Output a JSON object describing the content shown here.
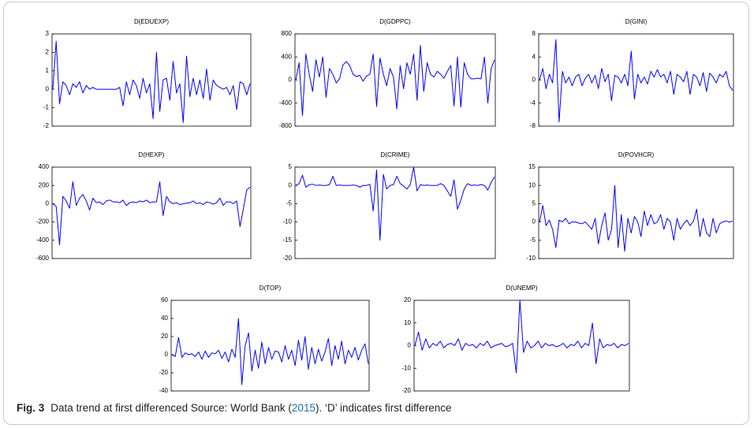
{
  "chart_data": [
    {
      "type": "line",
      "title": "D(EDUEXP)",
      "color": "#0000ff",
      "ylim": [
        -2,
        3
      ],
      "yticks": [
        -2,
        -1,
        0,
        1,
        2,
        3
      ],
      "values": [
        0,
        2.6,
        -0.8,
        0.4,
        0.2,
        -0.3,
        0.3,
        0.1,
        0.4,
        -0.2,
        0.2,
        0,
        0.1,
        0,
        0,
        0,
        0,
        0,
        0,
        0,
        0.1,
        -0.9,
        0.4,
        -0.3,
        0.5,
        0.2,
        -0.5,
        0.6,
        -0.2,
        0.3,
        -1.6,
        2,
        -1.2,
        0.5,
        0.6,
        -0.6,
        1.5,
        -0.2,
        0.3,
        -1.8,
        1.8,
        -0.4,
        0.6,
        -0.3,
        0.5,
        -0.5,
        1.1,
        -0.6,
        0.5,
        0.2,
        0.1,
        0,
        0.1,
        -0.3,
        0.2,
        -1.1,
        0.4,
        0.3,
        -0.3,
        0.3
      ]
    },
    {
      "type": "line",
      "title": "D(GDPPC)",
      "color": "#0000ff",
      "ylim": [
        -800,
        800
      ],
      "yticks": [
        -800,
        -400,
        0,
        400,
        800
      ],
      "values": [
        0,
        300,
        -620,
        450,
        100,
        -200,
        350,
        50,
        400,
        -300,
        200,
        100,
        -50,
        20,
        260,
        320,
        250,
        100,
        60,
        80,
        -20,
        70,
        100,
        450,
        -460,
        380,
        100,
        -100,
        200,
        50,
        -500,
        250,
        -150,
        300,
        100,
        450,
        -350,
        600,
        -200,
        300,
        100,
        50,
        150,
        100,
        30,
        150,
        250,
        -450,
        400,
        -470,
        300,
        100,
        20,
        20,
        30,
        20,
        400,
        -400,
        200,
        350
      ]
    },
    {
      "type": "line",
      "title": "D(GINI)",
      "color": "#0000ff",
      "ylim": [
        -8,
        8
      ],
      "yticks": [
        -8,
        -4,
        0,
        4,
        8
      ],
      "values": [
        0,
        2,
        -1.5,
        1,
        -0.5,
        7,
        -7.3,
        1.5,
        -0.5,
        0.5,
        -1,
        0.5,
        1,
        -1,
        0.3,
        1,
        -0.5,
        0.8,
        -1.5,
        2,
        -0.3,
        1,
        -3.6,
        0.8,
        0.5,
        -0.5,
        1,
        -1,
        5,
        -3.3,
        1,
        -0.5,
        0.5,
        -0.7,
        1.5,
        0.5,
        1.8,
        0.5,
        1,
        -0.5,
        1.5,
        -2.5,
        1,
        0.5,
        -0.3,
        1.5,
        -2.5,
        1,
        0.5,
        -1,
        1.3,
        -2,
        1.2,
        0.5,
        -0.5,
        1,
        0.5,
        1.5,
        -1,
        -1.8
      ]
    },
    {
      "type": "line",
      "title": "D(HEXP)",
      "color": "#0000ff",
      "ylim": [
        -600,
        400
      ],
      "yticks": [
        -600,
        -400,
        -200,
        0,
        200,
        400
      ],
      "values": [
        0,
        -30,
        -450,
        80,
        30,
        -50,
        240,
        -20,
        60,
        100,
        30,
        -70,
        60,
        10,
        20,
        -10,
        30,
        40,
        20,
        20,
        10,
        40,
        -20,
        10,
        20,
        10,
        30,
        20,
        40,
        10,
        20,
        20,
        240,
        -130,
        80,
        20,
        0,
        10,
        -10,
        0,
        5,
        10,
        30,
        0,
        10,
        -10,
        20,
        10,
        -5,
        10,
        60,
        -20,
        20,
        20,
        0,
        30,
        -250,
        -60,
        150,
        180
      ]
    },
    {
      "type": "line",
      "title": "D(CRIME)",
      "color": "#0000ff",
      "ylim": [
        -20,
        5
      ],
      "yticks": [
        -20,
        -15,
        -10,
        -5,
        0,
        5
      ],
      "values": [
        0,
        0.5,
        2.8,
        -0.5,
        0.2,
        0.3,
        0,
        0.1,
        0,
        0,
        0.2,
        2.5,
        0,
        0.1,
        0,
        0,
        0,
        0.1,
        0,
        -0.5,
        0,
        0,
        0.3,
        -7,
        4.2,
        -15,
        3,
        -1,
        0,
        0.2,
        2.5,
        0.5,
        -0.2,
        -1,
        0.2,
        5,
        -1.5,
        0.2,
        0,
        0.1,
        0,
        0,
        0,
        0.5,
        0,
        -1.5,
        -3,
        1.5,
        -6.5,
        -4,
        -1,
        0.5,
        0,
        0.1,
        0,
        0.2,
        0,
        -1.3,
        0.8,
        2.3
      ]
    },
    {
      "type": "line",
      "title": "D(POVHCR)",
      "color": "#0000ff",
      "ylim": [
        -10,
        15
      ],
      "yticks": [
        -10,
        -5,
        0,
        5,
        10,
        15
      ],
      "values": [
        0,
        4.5,
        -1,
        0.5,
        -2,
        -7,
        0.5,
        0,
        1,
        -0.5,
        0,
        0,
        -0.3,
        -0.5,
        0,
        -1,
        -2,
        1,
        -6,
        -1,
        2.5,
        -5,
        -2,
        10,
        -7,
        2,
        -8,
        1,
        -3,
        1.5,
        0,
        -4,
        3,
        -1,
        2,
        -0.5,
        0,
        2,
        -2,
        1,
        0,
        -5,
        1,
        -2,
        -0.5,
        0.5,
        -1,
        0.2,
        3.5,
        -4,
        1,
        -3,
        -4,
        1,
        -3,
        -0.5,
        0,
        0.3,
        0,
        0.2
      ]
    },
    {
      "type": "line",
      "title": "D(TOP)",
      "color": "#0000ff",
      "ylim": [
        -40,
        60
      ],
      "yticks": [
        -40,
        -20,
        0,
        20,
        40,
        60
      ],
      "values": [
        0,
        -2,
        19,
        -3,
        2,
        0,
        1,
        -2,
        3,
        -5,
        4,
        -3,
        2,
        1,
        5,
        -4,
        3,
        -8,
        6,
        -3,
        40,
        -33,
        10,
        24,
        -18,
        5,
        -15,
        14,
        -10,
        8,
        -5,
        4,
        3,
        -8,
        10,
        -5,
        5,
        -12,
        16,
        -6,
        20,
        -16,
        8,
        -10,
        6,
        -7,
        3,
        18,
        -12,
        10,
        -5,
        15,
        -10,
        5,
        -3,
        8,
        -6,
        5,
        12,
        -10
      ]
    },
    {
      "type": "line",
      "title": "D(UNEMP)",
      "color": "#0000ff",
      "ylim": [
        -20,
        20
      ],
      "yticks": [
        -20,
        -10,
        0,
        10,
        20
      ],
      "values": [
        0,
        6,
        -2,
        3,
        -1,
        1,
        0,
        2,
        -1,
        0.5,
        1,
        0,
        3,
        -2,
        1,
        0,
        0.5,
        -1,
        1,
        0,
        2,
        -1,
        0,
        0.5,
        1,
        -0.5,
        0,
        1,
        -12,
        20,
        -3,
        2,
        -1,
        0,
        2,
        -1,
        1,
        0,
        0.5,
        -0.5,
        0,
        1,
        -1,
        0.5,
        0,
        2,
        -1,
        1,
        0,
        10,
        -8,
        3,
        -1,
        0.5,
        0,
        1,
        -1,
        0.5,
        0,
        1
      ]
    }
  ],
  "caption": {
    "label": "Fig. 3",
    "text": "Data trend at first differenced Source: World Bank (",
    "link": "2015",
    "after": "). ‘D’ indicates first difference"
  }
}
